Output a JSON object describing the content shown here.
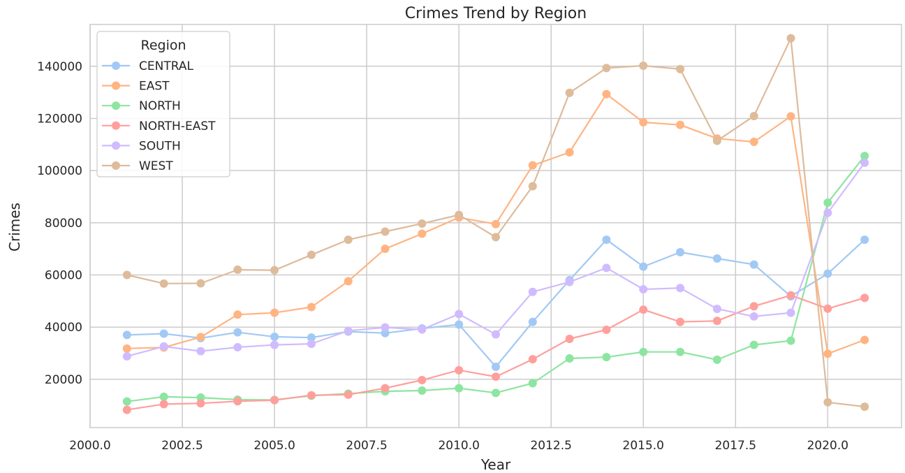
{
  "chart_data": {
    "type": "line",
    "title": "Crimes Trend by Region",
    "xlabel": "Year",
    "ylabel": "Crimes",
    "xlim": [
      2000.0,
      2022.0
    ],
    "ylim": [
      1500,
      156000
    ],
    "x_ticks": [
      2000.0,
      2002.5,
      2005.0,
      2007.5,
      2010.0,
      2012.5,
      2015.0,
      2017.5,
      2020.0
    ],
    "x_tick_labels": [
      "2000.0",
      "2002.5",
      "2005.0",
      "2007.5",
      "2010.0",
      "2012.5",
      "2015.0",
      "2017.5",
      "2020.0"
    ],
    "y_ticks": [
      20000,
      40000,
      60000,
      80000,
      100000,
      120000,
      140000
    ],
    "y_tick_labels": [
      "20000",
      "40000",
      "60000",
      "80000",
      "100000",
      "120000",
      "140000"
    ],
    "grid": true,
    "legend": {
      "title": "Region",
      "position": "top-left"
    },
    "x": [
      2001,
      2002,
      2003,
      2004,
      2005,
      2006,
      2007,
      2008,
      2009,
      2010,
      2011,
      2012,
      2013,
      2014,
      2015,
      2016,
      2017,
      2018,
      2019,
      2020,
      2021
    ],
    "series": [
      {
        "name": "CENTRAL",
        "color": "#a1c9f4",
        "values": [
          37000,
          37500,
          35800,
          38000,
          36300,
          36000,
          38300,
          37700,
          39500,
          41000,
          24800,
          42000,
          58000,
          73500,
          63200,
          68700,
          66300,
          64000,
          51800,
          60500,
          73500
        ]
      },
      {
        "name": "EAST",
        "color": "#ffb482",
        "values": [
          31800,
          32200,
          36200,
          44800,
          45500,
          47700,
          57600,
          70000,
          75800,
          82000,
          79500,
          102000,
          107000,
          129300,
          118500,
          117500,
          112300,
          111000,
          120800,
          29800,
          35100
        ]
      },
      {
        "name": "NORTH",
        "color": "#8de5a1",
        "values": [
          11500,
          13300,
          13000,
          12200,
          12100,
          13700,
          14500,
          15400,
          15700,
          16600,
          14800,
          18500,
          28000,
          28500,
          30500,
          30500,
          27500,
          33200,
          34800,
          87700,
          105600
        ]
      },
      {
        "name": "NORTH-EAST",
        "color": "#ff9f9b",
        "values": [
          8300,
          10500,
          10800,
          11600,
          12000,
          13900,
          14100,
          16600,
          19700,
          23500,
          21000,
          27700,
          35500,
          39000,
          46700,
          42000,
          42400,
          48000,
          52200,
          47100,
          51200
        ]
      },
      {
        "name": "SOUTH",
        "color": "#d0bbff",
        "values": [
          28800,
          32600,
          30800,
          32300,
          33200,
          33600,
          38600,
          39900,
          39100,
          45000,
          37200,
          53500,
          57300,
          62700,
          54500,
          55000,
          47000,
          44100,
          45500,
          83800,
          103000
        ]
      },
      {
        "name": "WEST",
        "color": "#debb9b",
        "values": [
          60000,
          56700,
          56800,
          62000,
          61800,
          67700,
          73500,
          76600,
          79700,
          83000,
          74500,
          94000,
          129800,
          139300,
          140200,
          138900,
          111400,
          120900,
          150700,
          11200,
          9500
        ]
      }
    ]
  }
}
